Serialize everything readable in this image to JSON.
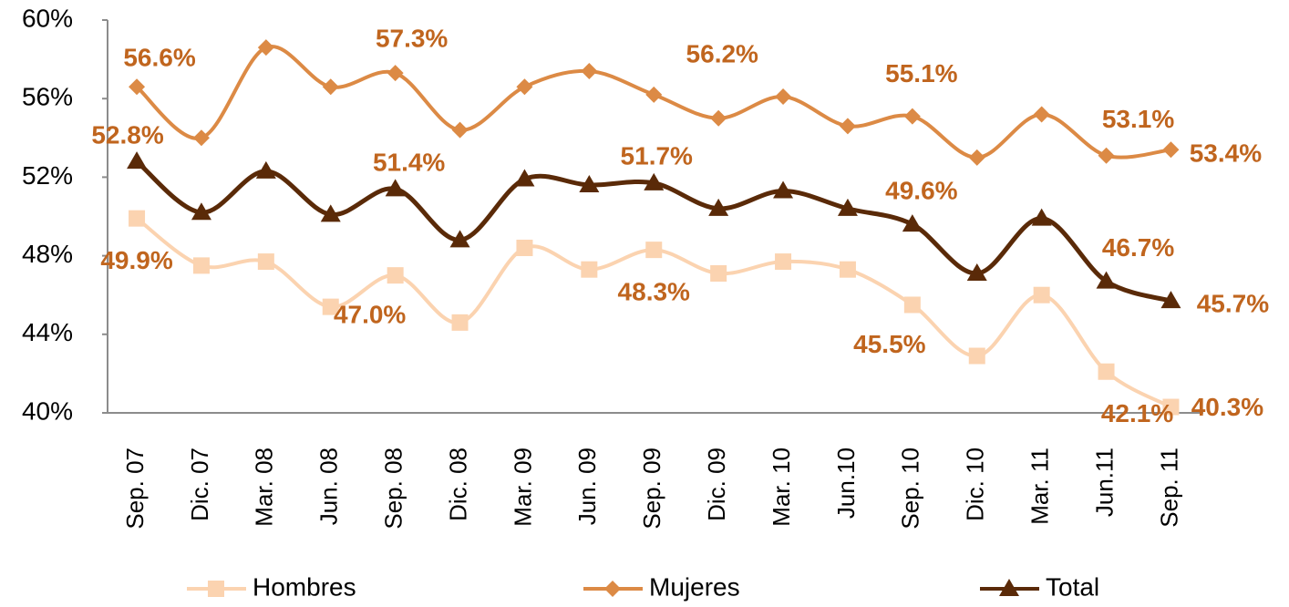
{
  "chart_data": {
    "type": "line",
    "categories": [
      "Sep. 07",
      "Dic. 07",
      "Mar. 08",
      "Jun. 08",
      "Sep. 08",
      "Dic. 08",
      "Mar. 09",
      "Jun. 09",
      "Sep. 09",
      "Dic. 09",
      "Mar. 10",
      "Jun.10",
      "Sep. 10",
      "Dic. 10",
      "Mar. 11",
      "Jun.11",
      "Sep. 11"
    ],
    "ylim": [
      40,
      60
    ],
    "yticks": [
      {
        "value": 40,
        "label": "40%"
      },
      {
        "value": 44,
        "label": "44%"
      },
      {
        "value": 48,
        "label": "48%"
      },
      {
        "value": 52,
        "label": "52%"
      },
      {
        "value": 56,
        "label": "56%"
      },
      {
        "value": 60,
        "label": "60%"
      }
    ],
    "grid": false,
    "legend": "bottom",
    "series": [
      {
        "name": "Hombres",
        "color": "#fbd3b0",
        "marker": "square",
        "values": [
          49.9,
          47.5,
          47.7,
          45.4,
          47.0,
          44.6,
          48.4,
          47.3,
          48.3,
          47.1,
          47.7,
          47.3,
          45.5,
          42.9,
          46.0,
          42.1,
          40.3
        ],
        "value_labels": [
          "49.9%",
          null,
          null,
          null,
          "47.0%",
          null,
          null,
          null,
          "48.3%",
          null,
          null,
          null,
          "45.5%",
          null,
          null,
          "42.1%",
          "40.3%"
        ]
      },
      {
        "name": "Mujeres",
        "color": "#dc8a45",
        "marker": "diamond",
        "values": [
          56.6,
          54.0,
          58.6,
          56.6,
          57.3,
          54.4,
          56.6,
          57.4,
          56.2,
          55.0,
          56.1,
          54.6,
          55.1,
          53.0,
          55.2,
          53.1,
          53.4
        ],
        "value_labels": [
          "56.6%",
          null,
          null,
          null,
          "57.3%",
          null,
          null,
          null,
          "56.2%",
          null,
          null,
          null,
          "55.1%",
          null,
          null,
          "53.1%",
          "53.4%"
        ]
      },
      {
        "name": "Total",
        "color": "#5a2a08",
        "marker": "triangle",
        "values": [
          52.8,
          50.2,
          52.3,
          50.1,
          51.4,
          48.8,
          51.9,
          51.6,
          51.7,
          50.4,
          51.3,
          50.4,
          49.6,
          47.1,
          49.9,
          46.7,
          45.7
        ],
        "value_labels": [
          "52.8%",
          null,
          null,
          null,
          "51.4%",
          null,
          null,
          null,
          "51.7%",
          null,
          null,
          null,
          "49.6%",
          null,
          null,
          "46.7%",
          "45.7%"
        ]
      }
    ]
  }
}
